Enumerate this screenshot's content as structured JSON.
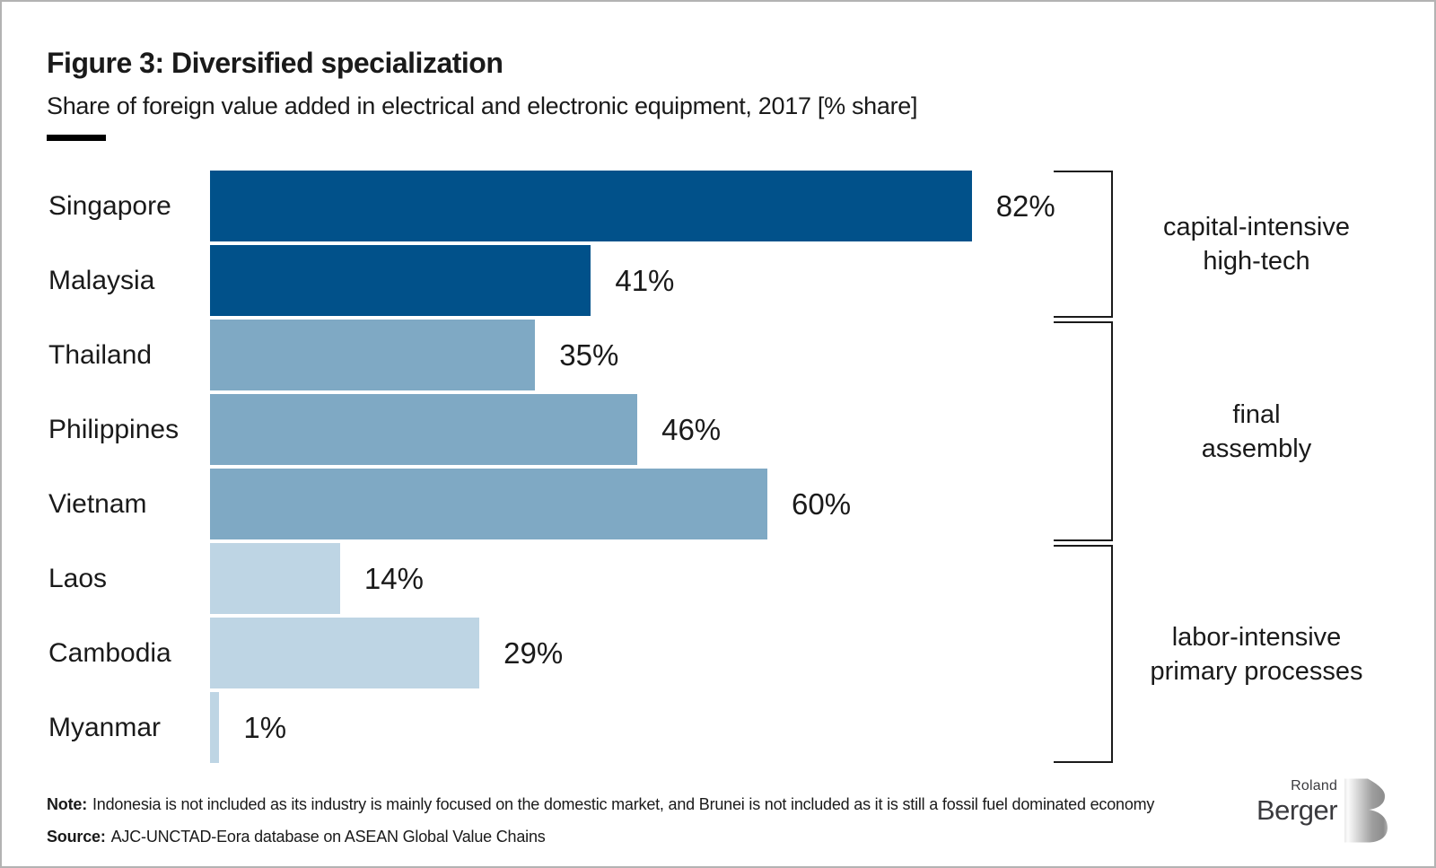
{
  "header": {
    "title": "Figure 3: Diversified specialization",
    "subtitle": "Share of foreign value added in electrical and electronic equipment, 2017 [% share]"
  },
  "chart_data": {
    "type": "bar",
    "orientation": "horizontal",
    "title": "Figure 3: Diversified specialization",
    "subtitle": "Share of foreign value added in electrical and electronic equipment, 2017 [% share]",
    "unit": "%",
    "xlim": [
      0,
      100
    ],
    "grid": false,
    "legend": false,
    "categories": [
      "Singapore",
      "Malaysia",
      "Thailand",
      "Philippines",
      "Vietnam",
      "Laos",
      "Cambodia",
      "Myanmar"
    ],
    "values": [
      82,
      41,
      35,
      46,
      60,
      14,
      29,
      1
    ],
    "value_labels": [
      "82%",
      "41%",
      "35%",
      "46%",
      "60%",
      "14%",
      "29%",
      "1%"
    ],
    "groups": [
      {
        "label_lines": [
          "capital-intensive",
          "high-tech"
        ],
        "categories": [
          "Singapore",
          "Malaysia"
        ],
        "start_row": 0,
        "end_row": 1,
        "color": "#01518a"
      },
      {
        "label_lines": [
          "final",
          "assembly"
        ],
        "categories": [
          "Thailand",
          "Philippines",
          "Vietnam"
        ],
        "start_row": 2,
        "end_row": 4,
        "color": "#7fa9c4"
      },
      {
        "label_lines": [
          "labor-intensive",
          "primary processes"
        ],
        "categories": [
          "Laos",
          "Cambodia",
          "Myanmar"
        ],
        "start_row": 5,
        "end_row": 7,
        "color": "#bed5e4"
      }
    ],
    "colors": {
      "capital_intensive_high_tech": "#01518a",
      "final_assembly": "#7fa9c4",
      "labor_intensive_primary_processes": "#bed5e4"
    }
  },
  "footer": {
    "note_label": "Note:",
    "note_text": "Indonesia is not included as its industry is mainly focused on the domestic market, and Brunei is not included as it is still a fossil fuel dominated economy",
    "source_label": "Source:",
    "source_text": "AJC-UNCTAD-Eora database on ASEAN Global Value Chains"
  },
  "logo": {
    "top": "Roland",
    "bottom": "Berger"
  }
}
